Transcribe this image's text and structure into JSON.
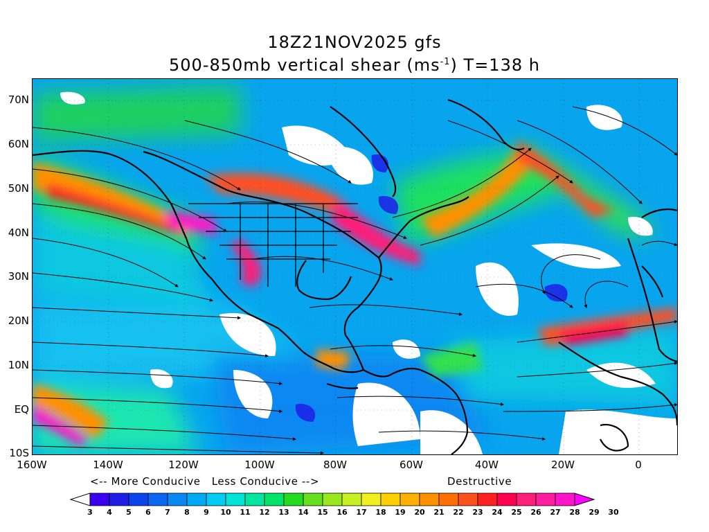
{
  "title": {
    "line1": "18Z21NOV2025 gfs",
    "line2_prefix": "500-850mb vertical shear (ms",
    "line2_sup": "-1",
    "line2_suffix": ") T=138 h"
  },
  "map": {
    "lon_range": [
      -160,
      10
    ],
    "lat_range": [
      -10,
      75
    ],
    "y_labels": [
      "70N",
      "60N",
      "50N",
      "40N",
      "30N",
      "20N",
      "10N",
      "EQ",
      "10S"
    ],
    "x_labels": [
      "160W",
      "140W",
      "120W",
      "100W",
      "80W",
      "60W",
      "40W",
      "20W",
      "0"
    ]
  },
  "captions": {
    "conducive": "<-- More Conducive   Less Conducive -->",
    "destructive": "Destructive"
  },
  "colorbar": {
    "labels": [
      "3",
      "4",
      "5",
      "6",
      "7",
      "8",
      "9",
      "10",
      "11",
      "12",
      "13",
      "14",
      "15",
      "16",
      "17",
      "18",
      "19",
      "20",
      "21",
      "22",
      "23",
      "24",
      "25",
      "26",
      "27",
      "28",
      "29",
      "30"
    ],
    "colors": [
      "#ffffff",
      "#3b00ee",
      "#1e1ee6",
      "#0a44ec",
      "#0a66f0",
      "#0a88f2",
      "#00aaf4",
      "#00ccf4",
      "#00e4d8",
      "#00e6a0",
      "#00e46a",
      "#22dc22",
      "#66e01e",
      "#99e81e",
      "#c8f020",
      "#f0f020",
      "#ffd000",
      "#ffb000",
      "#ff9000",
      "#ff7000",
      "#ff5020",
      "#ff2020",
      "#ff0050",
      "#ff1e78",
      "#ff1ea0",
      "#ff14c8",
      "#ff00ff"
    ]
  }
}
